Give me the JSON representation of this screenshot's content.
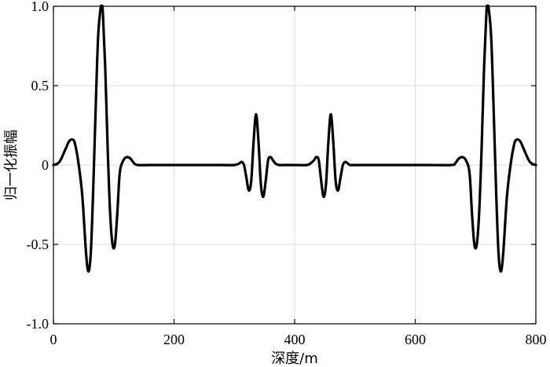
{
  "chart_data": {
    "type": "line",
    "title": "",
    "xlabel": "深度/m",
    "ylabel": "归一化振幅",
    "xlim": [
      0,
      800
    ],
    "ylim": [
      -1.0,
      1.0
    ],
    "grid": true,
    "xticks": [
      0,
      200,
      400,
      600,
      800
    ],
    "xtick_labels": [
      "0",
      "200",
      "400",
      "600",
      "800"
    ],
    "yticks": [
      -1.0,
      -0.5,
      0,
      0.5,
      1.0
    ],
    "ytick_labels": [
      "-1.0",
      "-0.5",
      "0",
      "0.5",
      "1.0"
    ],
    "series": [
      {
        "color": "#000000",
        "x": [
          0,
          10,
          20,
          26,
          32,
          36,
          42,
          48,
          54,
          58,
          62,
          66,
          70,
          74,
          78,
          80,
          82,
          86,
          90,
          94,
          98,
          102,
          106,
          110,
          116,
          122,
          128,
          134,
          140,
          160,
          200,
          240,
          280,
          300,
          308,
          312,
          316,
          320,
          324,
          328,
          332,
          336,
          340,
          344,
          348,
          352,
          356,
          360,
          364,
          368,
          374,
          380,
          400,
          420,
          426,
          432,
          436,
          440,
          444,
          448,
          452,
          456,
          460,
          464,
          468,
          472,
          476,
          480,
          484,
          488,
          492,
          500,
          540,
          580,
          620,
          660,
          666,
          672,
          678,
          684,
          690,
          694,
          698,
          702,
          706,
          710,
          714,
          718,
          720,
          722,
          726,
          730,
          734,
          738,
          742,
          746,
          752,
          758,
          764,
          768,
          774,
          780,
          790,
          800
        ],
        "y": [
          0.0,
          0.02,
          0.1,
          0.15,
          0.16,
          0.13,
          0.0,
          -0.2,
          -0.55,
          -0.67,
          -0.55,
          -0.15,
          0.35,
          0.8,
          0.98,
          1.0,
          0.96,
          0.6,
          0.1,
          -0.3,
          -0.5,
          -0.5,
          -0.3,
          -0.05,
          0.03,
          0.05,
          0.04,
          0.01,
          0.0,
          0.0,
          0.0,
          0.0,
          0.0,
          0.0,
          0.01,
          0.02,
          0.0,
          -0.08,
          -0.16,
          -0.1,
          0.15,
          0.32,
          0.15,
          -0.12,
          -0.2,
          -0.1,
          0.03,
          0.05,
          0.03,
          0.01,
          0.0,
          0.0,
          0.0,
          0.0,
          0.01,
          0.03,
          0.05,
          0.03,
          -0.1,
          -0.2,
          -0.12,
          0.15,
          0.32,
          0.15,
          -0.1,
          -0.16,
          -0.08,
          0.0,
          0.02,
          0.01,
          0.0,
          0.0,
          0.0,
          0.0,
          0.0,
          0.0,
          0.01,
          0.04,
          0.05,
          0.03,
          -0.05,
          -0.3,
          -0.5,
          -0.5,
          -0.3,
          0.1,
          0.6,
          0.96,
          1.0,
          0.98,
          0.8,
          0.35,
          -0.15,
          -0.55,
          -0.67,
          -0.55,
          -0.2,
          0.0,
          0.13,
          0.16,
          0.15,
          0.1,
          0.02,
          0.0
        ]
      }
    ]
  }
}
